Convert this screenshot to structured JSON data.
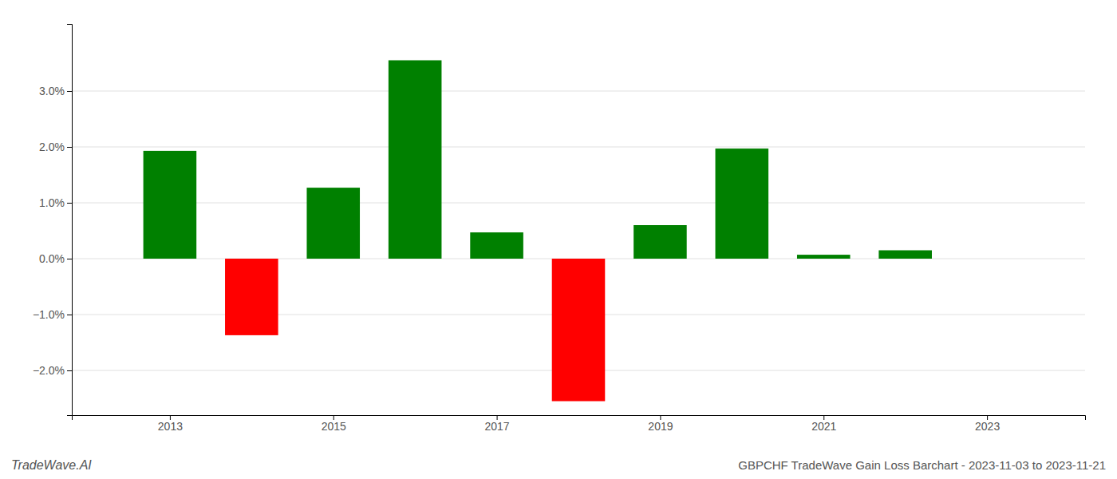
{
  "chart_data": {
    "type": "bar",
    "title": "GBPCHF TradeWave Gain Loss Barchart - 2023-11-03 to 2023-11-21",
    "annotations": [
      "TradeWave.AI"
    ],
    "x": [
      2013,
      2014,
      2015,
      2016,
      2017,
      2018,
      2019,
      2020,
      2021,
      2022
    ],
    "values": [
      0.0193,
      -0.0137,
      0.0127,
      0.0355,
      0.0047,
      -0.0255,
      0.006,
      0.0197,
      0.0007,
      0.0015
    ],
    "colors": [
      "#008000",
      "#ff0000",
      "#008000",
      "#008000",
      "#008000",
      "#ff0000",
      "#008000",
      "#008000",
      "#008000",
      "#008000"
    ],
    "xlim": [
      2011.8,
      2024.2
    ],
    "xticks": [
      2013,
      2015,
      2017,
      2019,
      2021,
      2023
    ],
    "ylim": [
      -0.028,
      0.042
    ],
    "yticks": [
      {
        "value": -0.02,
        "label": "−2.0%"
      },
      {
        "value": -0.01,
        "label": "−1.0%"
      },
      {
        "value": 0.0,
        "label": "0.0%"
      },
      {
        "value": 0.01,
        "label": "1.0%"
      },
      {
        "value": 0.02,
        "label": "2.0%"
      },
      {
        "value": 0.03,
        "label": "3.0%"
      }
    ],
    "grid": true
  }
}
